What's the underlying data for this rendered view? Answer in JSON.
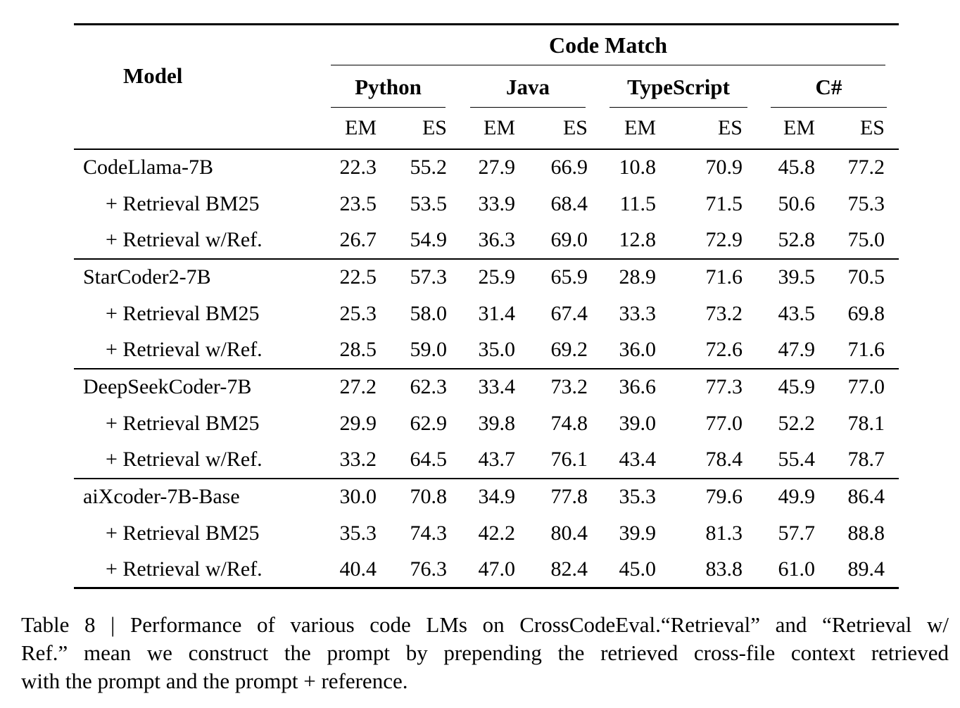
{
  "theme": {
    "background": "#ffffff",
    "text_color": "#000000",
    "rule_color": "#000000"
  },
  "table": {
    "model_header": "Model",
    "group_header": "Code Match",
    "languages": [
      {
        "label": "Python"
      },
      {
        "label": "Java"
      },
      {
        "label": "TypeScript"
      },
      {
        "label": "C#"
      }
    ],
    "metric_headers": [
      "EM",
      "ES"
    ],
    "rows": [
      {
        "model": "CodeLlama-7B",
        "indent": false,
        "group_end": false,
        "values": [
          "22.3",
          "55.2",
          "27.9",
          "66.9",
          "10.8",
          "70.9",
          "45.8",
          "77.2"
        ]
      },
      {
        "model": "+ Retrieval BM25",
        "indent": true,
        "group_end": false,
        "values": [
          "23.5",
          "53.5",
          "33.9",
          "68.4",
          "11.5",
          "71.5",
          "50.6",
          "75.3"
        ]
      },
      {
        "model": "+ Retrieval w/Ref.",
        "indent": true,
        "group_end": true,
        "values": [
          "26.7",
          "54.9",
          "36.3",
          "69.0",
          "12.8",
          "72.9",
          "52.8",
          "75.0"
        ]
      },
      {
        "model": "StarCoder2-7B",
        "indent": false,
        "group_end": false,
        "values": [
          "22.5",
          "57.3",
          "25.9",
          "65.9",
          "28.9",
          "71.6",
          "39.5",
          "70.5"
        ]
      },
      {
        "model": "+ Retrieval BM25",
        "indent": true,
        "group_end": false,
        "values": [
          "25.3",
          "58.0",
          "31.4",
          "67.4",
          "33.3",
          "73.2",
          "43.5",
          "69.8"
        ]
      },
      {
        "model": "+ Retrieval w/Ref.",
        "indent": true,
        "group_end": true,
        "values": [
          "28.5",
          "59.0",
          "35.0",
          "69.2",
          "36.0",
          "72.6",
          "47.9",
          "71.6"
        ]
      },
      {
        "model": "DeepSeekCoder-7B",
        "indent": false,
        "group_end": false,
        "values": [
          "27.2",
          "62.3",
          "33.4",
          "73.2",
          "36.6",
          "77.3",
          "45.9",
          "77.0"
        ]
      },
      {
        "model": "+ Retrieval BM25",
        "indent": true,
        "group_end": false,
        "values": [
          "29.9",
          "62.9",
          "39.8",
          "74.8",
          "39.0",
          "77.0",
          "52.2",
          "78.1"
        ]
      },
      {
        "model": "+ Retrieval w/Ref.",
        "indent": true,
        "group_end": true,
        "values": [
          "33.2",
          "64.5",
          "43.7",
          "76.1",
          "43.4",
          "78.4",
          "55.4",
          "78.7"
        ]
      },
      {
        "model": "aiXcoder-7B-Base",
        "indent": false,
        "group_end": false,
        "values": [
          "30.0",
          "70.8",
          "34.9",
          "77.8",
          "35.3",
          "79.6",
          "49.9",
          "86.4"
        ]
      },
      {
        "model": "+ Retrieval BM25",
        "indent": true,
        "group_end": false,
        "values": [
          "35.3",
          "74.3",
          "42.2",
          "80.4",
          "39.9",
          "81.3",
          "57.7",
          "88.8"
        ]
      },
      {
        "model": "+ Retrieval w/Ref.",
        "indent": true,
        "group_end": false,
        "values": [
          "40.4",
          "76.3",
          "47.0",
          "82.4",
          "45.0",
          "83.8",
          "61.0",
          "89.4"
        ]
      }
    ]
  },
  "caption": {
    "lines": [
      "Table 8 | Performance of various code LMs on CrossCodeEval.“Retrieval” and “Retrieval w/",
      "Ref.” mean we construct the prompt by prepending the retrieved cross-file context retrieved",
      "with the prompt and the prompt + reference."
    ]
  }
}
